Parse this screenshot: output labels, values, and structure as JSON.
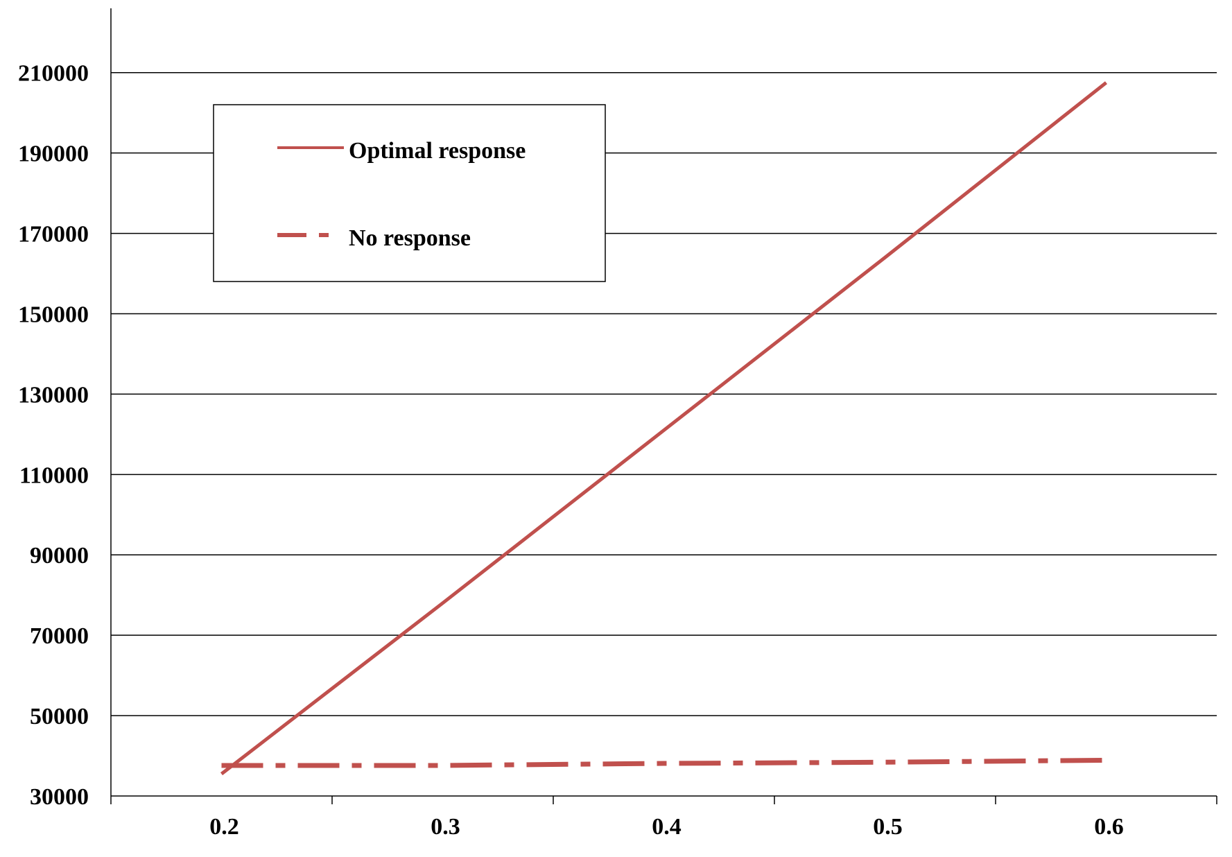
{
  "chart_data": {
    "type": "line",
    "x": [
      0.2,
      0.3,
      0.4,
      0.5,
      0.6
    ],
    "x_tick_labels": [
      "0.2",
      "0.3",
      "0.4",
      "0.5",
      "0.6"
    ],
    "y_tick_labels": [
      "30000",
      "50000",
      "70000",
      "90000",
      "110000",
      "130000",
      "150000",
      "170000",
      "190000",
      "210000"
    ],
    "y_ticks": [
      30000,
      50000,
      70000,
      90000,
      110000,
      130000,
      150000,
      170000,
      190000,
      210000
    ],
    "ylim": [
      30000,
      226000
    ],
    "grid": true,
    "legend_position": "top-left",
    "title": "",
    "xlabel": "",
    "ylabel": "",
    "series": [
      {
        "name": "Optimal response",
        "values": [
          35500,
          78000,
          121000,
          164000,
          207500
        ],
        "style": "solid",
        "color": "#c0504d"
      },
      {
        "name": "No response",
        "values": [
          37600,
          37600,
          38100,
          38400,
          38900
        ],
        "style": "dash-dot",
        "color": "#c0504d"
      }
    ]
  },
  "colors": {
    "series": "#c0504d",
    "gridline": "#000000",
    "background": "#ffffff"
  }
}
